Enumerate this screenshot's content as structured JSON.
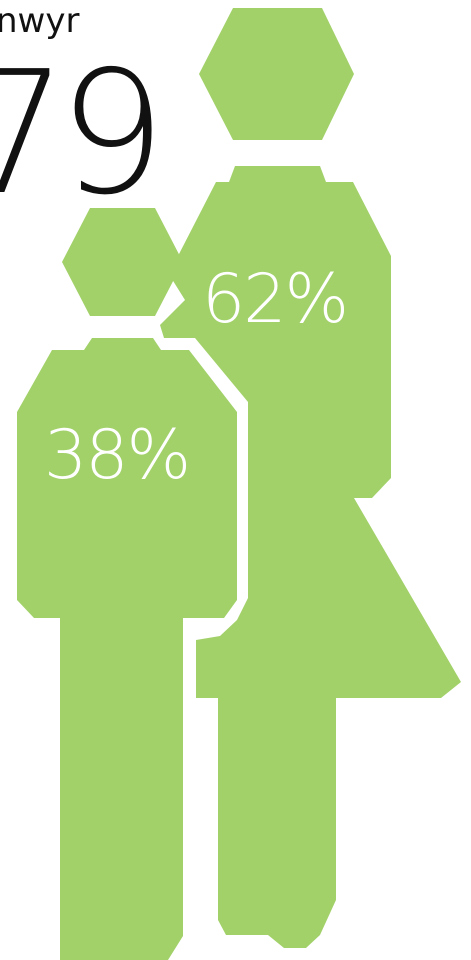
{
  "header": {
    "label": "nwyr",
    "value": "79"
  },
  "colors": {
    "figure": "#a2d16a",
    "label": "#ffffff",
    "text": "#111111"
  },
  "chart_data": {
    "type": "pictograph",
    "title": "",
    "categories": [
      "female",
      "male"
    ],
    "values": [
      62,
      38
    ],
    "labels": [
      "62%",
      "38%"
    ],
    "unit": "%"
  }
}
